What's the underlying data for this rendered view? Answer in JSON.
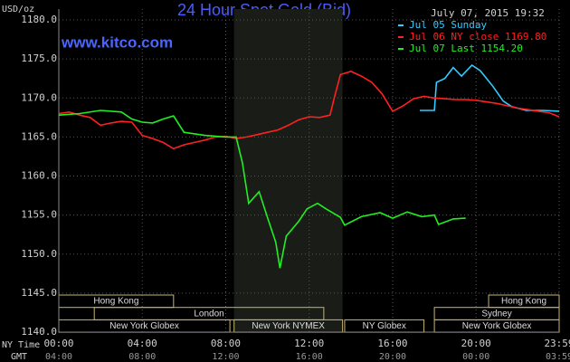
{
  "chart_data": {
    "type": "line",
    "title": "24 Hour Spot Gold (Bid)",
    "timestamp": "July 07, 2015 19:32",
    "source": "www.kitco.com",
    "ylabel": "USD/oz",
    "xlabel": "NY Time",
    "x2label": "GMT",
    "xlim": [
      0,
      23.98
    ],
    "xticks": [
      {
        "value": 0,
        "label": "00:00"
      },
      {
        "value": 4,
        "label": "04:00"
      },
      {
        "value": 8,
        "label": "08:00"
      },
      {
        "value": 12,
        "label": "12:00"
      },
      {
        "value": 16,
        "label": "16:00"
      },
      {
        "value": 20,
        "label": "20:00"
      },
      {
        "value": 23.98,
        "label": "23:59"
      }
    ],
    "x2ticks": [
      {
        "value": 0,
        "label": "04:00"
      },
      {
        "value": 4,
        "label": "08:00"
      },
      {
        "value": 8,
        "label": "12:00"
      },
      {
        "value": 12,
        "label": "16:00"
      },
      {
        "value": 16,
        "label": "20:00"
      },
      {
        "value": 20,
        "label": "00:00"
      },
      {
        "value": 23.98,
        "label": "03:59"
      }
    ],
    "ylim": [
      1140,
      1180
    ],
    "yticks": [
      {
        "value": 1140,
        "label": "1140.0"
      },
      {
        "value": 1145,
        "label": "1145.0"
      },
      {
        "value": 1150,
        "label": "1150.0"
      },
      {
        "value": 1155,
        "label": "1155.0"
      },
      {
        "value": 1160,
        "label": "1160.0"
      },
      {
        "value": 1165,
        "label": "1165.0"
      },
      {
        "value": 1170,
        "label": "1170.0"
      },
      {
        "value": 1175,
        "label": "1175.0"
      },
      {
        "value": 1180,
        "label": "1180.0"
      }
    ],
    "grid": true,
    "highlight": [
      8.4,
      13.6
    ],
    "sessions": [
      {
        "label": "Hong Kong",
        "row": 0,
        "start": 0,
        "end": 5.5
      },
      {
        "label": "Hong Kong",
        "row": 0,
        "start": 20.6,
        "end": 23.98
      },
      {
        "label": "London",
        "row": 1,
        "start": 1.7,
        "end": 12.7
      },
      {
        "label": "Sydney",
        "row": 1,
        "start": 18,
        "end": 23.98
      },
      {
        "label": "New York Globex",
        "row": 2,
        "start": 0,
        "end": 8.2
      },
      {
        "label": "New York NYMEX",
        "row": 2,
        "start": 8.4,
        "end": 13.6
      },
      {
        "label": "NY Globex",
        "row": 2,
        "start": 13.7,
        "end": 17.5
      },
      {
        "label": "New York Globex",
        "row": 2,
        "start": 18,
        "end": 23.98
      }
    ],
    "series": [
      {
        "name": "Jul 05 Sunday",
        "color": "#33ccff",
        "x": [
          17.3,
          18.0,
          18.1,
          18.5,
          18.9,
          19.3,
          19.8,
          20.2,
          20.8,
          21.3,
          21.7,
          22.4,
          23.2,
          23.98
        ],
        "values": [
          1168.4,
          1168.4,
          1172.0,
          1172.5,
          1173.9,
          1172.8,
          1174.2,
          1173.5,
          1171.5,
          1169.6,
          1168.9,
          1168.4,
          1168.4,
          1168.3
        ]
      },
      {
        "name": "Jul 06 NY close 1169.80",
        "color": "#ff2020",
        "x": [
          0,
          0.5,
          1,
          1.5,
          2,
          2.5,
          3,
          3.5,
          4,
          4.5,
          5,
          5.5,
          6,
          6.5,
          7,
          7.5,
          8,
          8.5,
          9,
          9.5,
          10,
          10.5,
          11,
          11.5,
          12,
          12.5,
          13,
          13.2,
          13.5,
          14,
          14.5,
          15,
          15.5,
          16,
          16.5,
          17,
          17.5,
          18,
          18.5,
          19,
          19.5,
          20,
          20.5,
          21,
          21.5,
          22,
          22.5,
          23,
          23.5,
          23.98
        ],
        "values": [
          1168.0,
          1168.2,
          1167.8,
          1167.5,
          1166.5,
          1166.8,
          1167.0,
          1166.9,
          1165.2,
          1164.8,
          1164.3,
          1163.5,
          1164.0,
          1164.3,
          1164.6,
          1165.0,
          1165.1,
          1164.8,
          1165.0,
          1165.3,
          1165.6,
          1165.9,
          1166.5,
          1167.2,
          1167.6,
          1167.5,
          1167.8,
          1170.0,
          1173.0,
          1173.4,
          1172.8,
          1172.0,
          1170.5,
          1168.3,
          1169.0,
          1169.9,
          1170.2,
          1170.0,
          1169.9,
          1169.8,
          1169.8,
          1169.7,
          1169.5,
          1169.3,
          1169.0,
          1168.7,
          1168.5,
          1168.3,
          1168.1,
          1167.6
        ]
      },
      {
        "name": "Jul 07 Last 1154.20",
        "color": "#22ee22",
        "x": [
          0,
          1,
          2,
          3,
          3.5,
          4,
          4.5,
          5,
          5.5,
          6,
          7,
          8,
          8.5,
          8.8,
          9.1,
          9.6,
          10,
          10.4,
          10.6,
          10.9,
          11.5,
          11.9,
          12.4,
          12.8,
          13.5,
          13.7,
          14.5,
          15.4,
          16,
          16.7,
          17.4,
          18,
          18.2,
          18.9,
          19.5
        ],
        "values": [
          1167.8,
          1168.0,
          1168.4,
          1168.2,
          1167.3,
          1166.9,
          1166.8,
          1167.3,
          1167.7,
          1165.6,
          1165.2,
          1165.0,
          1165.0,
          1161.7,
          1156.5,
          1158.0,
          1154.7,
          1151.5,
          1148.2,
          1152.3,
          1154.2,
          1155.8,
          1156.5,
          1155.8,
          1154.7,
          1153.7,
          1154.8,
          1155.3,
          1154.6,
          1155.4,
          1154.8,
          1155.0,
          1153.8,
          1154.5,
          1154.6
        ]
      }
    ]
  }
}
